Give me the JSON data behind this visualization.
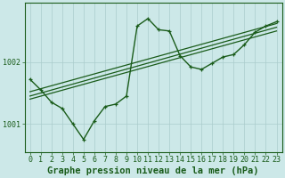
{
  "bg_color": "#cce8e8",
  "line_color": "#1a5c1a",
  "grid_color": "#aacccc",
  "xlabel": "Graphe pression niveau de la mer (hPa)",
  "xlabel_fontsize": 7.5,
  "tick_fontsize": 6.0,
  "ylabel_ticks": [
    1001,
    1002
  ],
  "xlim": [
    -0.5,
    23.5
  ],
  "ylim": [
    1000.55,
    1002.95
  ],
  "series1_x": [
    0,
    1,
    2,
    3,
    4,
    5,
    6,
    7,
    8,
    9,
    10,
    11,
    12,
    13,
    14,
    15,
    16,
    17,
    18,
    19,
    20,
    21,
    22,
    23
  ],
  "series1_y": [
    1001.72,
    1001.55,
    1001.35,
    1001.25,
    1001.0,
    1000.75,
    1001.05,
    1001.28,
    1001.32,
    1001.45,
    1002.58,
    1002.7,
    1002.52,
    1002.5,
    1002.1,
    1001.92,
    1001.88,
    1001.98,
    1002.08,
    1002.12,
    1002.28,
    1002.48,
    1002.58,
    1002.65
  ],
  "series2_x": [
    0,
    23
  ],
  "series2_y": [
    1001.52,
    1002.62
  ],
  "series3_x": [
    0,
    23
  ],
  "series3_y": [
    1001.45,
    1002.56
  ],
  "series4_x": [
    0,
    23
  ],
  "series4_y": [
    1001.4,
    1002.5
  ]
}
